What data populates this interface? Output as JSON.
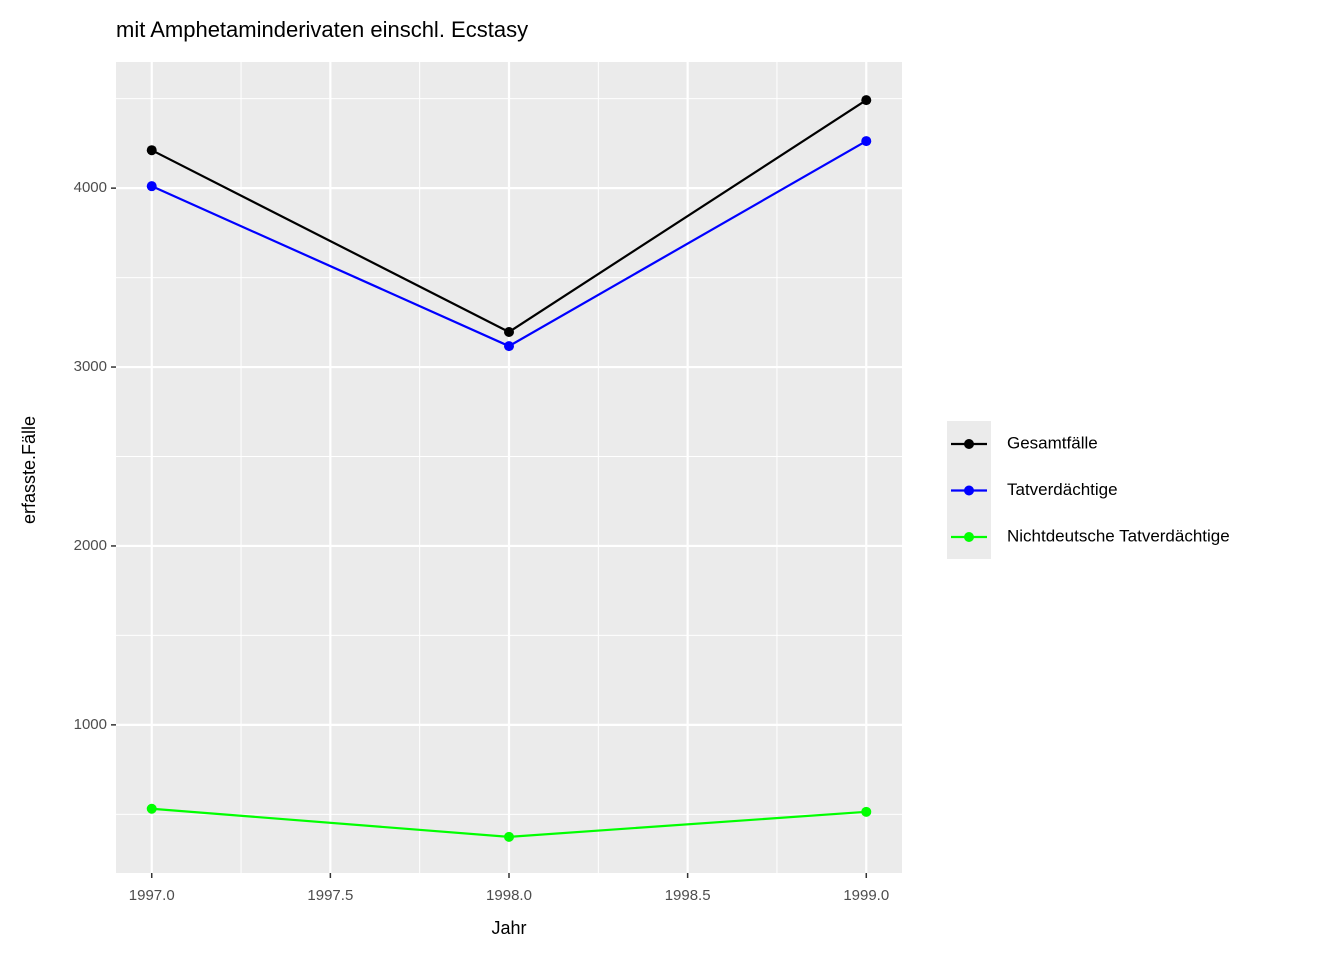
{
  "chart_data": {
    "type": "line",
    "title": "mit Amphetaminderivaten einschl. Ecstasy",
    "x_label": "Jahr",
    "y_label": "erfasste.Fälle",
    "x": [
      1997,
      1998,
      1999
    ],
    "series": [
      {
        "name": "Gesamtfälle",
        "color": "#000000",
        "values": [
          4212,
          3196,
          4492
        ]
      },
      {
        "name": "Tatverdächtige",
        "color": "#0000ff",
        "values": [
          4011,
          3117,
          4263
        ]
      },
      {
        "name": "Nichtdeutsche Tatverdächtige",
        "color": "#00ff00",
        "values": [
          531,
          374,
          514
        ]
      }
    ],
    "xlim": [
      1996.9,
      1999.1
    ],
    "xticks": [
      {
        "value": 1997,
        "label": "1997.0"
      },
      {
        "value": 1997.5,
        "label": "1997.5"
      },
      {
        "value": 1998,
        "label": "1998.0"
      },
      {
        "value": 1998.5,
        "label": "1998.5"
      },
      {
        "value": 1999,
        "label": "1999.0"
      }
    ],
    "ylim": [
      172,
      4705
    ],
    "yticks": [
      1000,
      2000,
      3000,
      4000
    ],
    "grid": true,
    "minor_grid": true,
    "legend": "right"
  }
}
